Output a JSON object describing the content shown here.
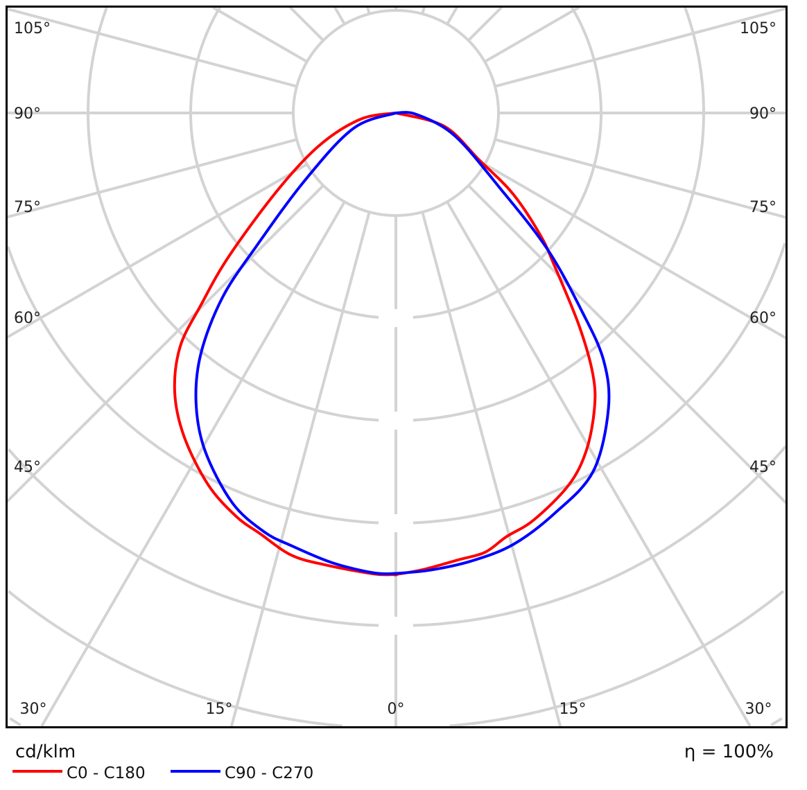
{
  "chart_data": {
    "type": "polar-line",
    "unit_label": "cd/klm",
    "efficiency_label": "η = 100%",
    "grid": true,
    "grid_rings": [
      1,
      2,
      3,
      4,
      5,
      6,
      7,
      8
    ],
    "ring_labels": [],
    "angle_step_deg": 15,
    "angle_labels_left": [
      "105°",
      "90°",
      "75°",
      "60°",
      "45°"
    ],
    "angle_labels_right": [
      "105°",
      "90°",
      "75°",
      "60°",
      "45°"
    ],
    "angle_labels_bottom": [
      "30°",
      "15°",
      "0°",
      "15°",
      "30°"
    ],
    "legend_position": "bottom-left",
    "series": [
      {
        "name": "C0 - C180",
        "color": "#ff0000",
        "left": [
          [
            0,
            4.5
          ],
          [
            2.7,
            4.5
          ],
          [
            8.8,
            4.46
          ],
          [
            13.3,
            4.43
          ],
          [
            17.9,
            4.31
          ],
          [
            21.6,
            4.23
          ],
          [
            26.8,
            4.06
          ],
          [
            33.2,
            3.77
          ],
          [
            38.4,
            3.47
          ],
          [
            42.7,
            3.1
          ],
          [
            45.4,
            2.67
          ],
          [
            49.3,
            2.15
          ],
          [
            56.8,
            1.38
          ],
          [
            67,
            0.81
          ],
          [
            80,
            0.35
          ],
          [
            90,
            0
          ]
        ],
        "right": [
          [
            0,
            4.5
          ],
          [
            3.4,
            4.46
          ],
          [
            7.9,
            4.4
          ],
          [
            11.5,
            4.37
          ],
          [
            14.6,
            4.27
          ],
          [
            18.7,
            4.19
          ],
          [
            24.9,
            4.0
          ],
          [
            29.4,
            3.78
          ],
          [
            33.9,
            3.47
          ],
          [
            37,
            3.19
          ],
          [
            40.7,
            2.74
          ],
          [
            45.9,
            2.16
          ],
          [
            49.7,
            1.85
          ],
          [
            55.3,
            1.39
          ],
          [
            60.6,
            0.93
          ],
          [
            74.6,
            0.49
          ],
          [
            90,
            0
          ]
        ]
      },
      {
        "name": "C90 - C270",
        "color": "#0000ff",
        "left": [
          [
            0,
            4.49
          ],
          [
            2.7,
            4.49
          ],
          [
            8,
            4.43
          ],
          [
            13.6,
            4.34
          ],
          [
            17.5,
            4.28
          ],
          [
            22.8,
            4.12
          ],
          [
            29.5,
            3.78
          ],
          [
            34.6,
            3.43
          ],
          [
            39,
            3.02
          ],
          [
            43.2,
            2.47
          ],
          [
            46.3,
            1.88
          ],
          [
            53.5,
            1.1
          ],
          [
            70,
            0.44
          ],
          [
            90,
            0
          ]
        ],
        "right": [
          [
            0,
            4.49
          ],
          [
            4.3,
            4.47
          ],
          [
            9.6,
            4.43
          ],
          [
            15.2,
            4.36
          ],
          [
            21.6,
            4.2
          ],
          [
            28.8,
            3.99
          ],
          [
            35.7,
            3.55
          ],
          [
            40,
            3.15
          ],
          [
            43.1,
            2.66
          ],
          [
            48,
            1.99
          ],
          [
            54.3,
            1.24
          ],
          [
            69,
            0.61
          ],
          [
            86,
            0.2
          ],
          [
            90,
            0
          ]
        ]
      }
    ]
  }
}
